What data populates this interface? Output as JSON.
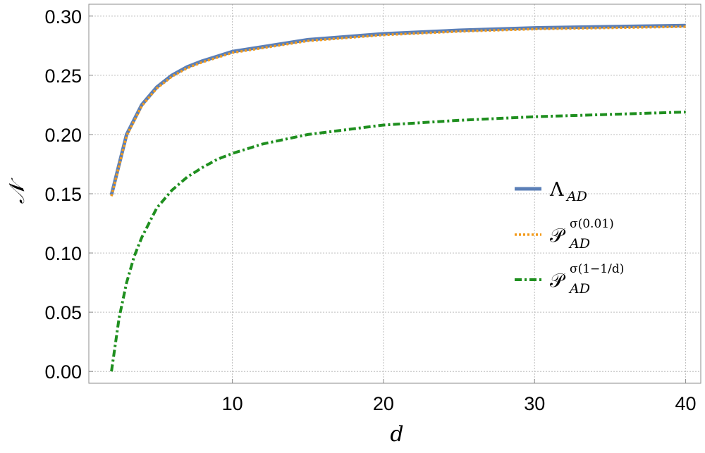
{
  "chart_data": {
    "type": "line",
    "xlabel": "d",
    "ylabel": "𝒩",
    "xlim": [
      0.5,
      41
    ],
    "ylim": [
      -0.01,
      0.31
    ],
    "xticks": [
      10,
      20,
      30,
      40
    ],
    "yticks": [
      0.0,
      0.05,
      0.1,
      0.15,
      0.2,
      0.25,
      0.3
    ],
    "xtick_labels": [
      "10",
      "20",
      "30",
      "40"
    ],
    "ytick_labels": [
      "0.00",
      "0.05",
      "0.10",
      "0.15",
      "0.20",
      "0.25",
      "0.30"
    ],
    "grid": true,
    "legend_position": "center-right",
    "series": [
      {
        "name": "Λ_AD",
        "legend_main": "Λ",
        "legend_sub": "AD",
        "legend_sup": "",
        "color": "#5b7fb7",
        "style": "solid",
        "x": [
          2,
          3,
          4,
          5,
          6,
          7,
          8,
          9,
          10,
          15,
          20,
          25,
          30,
          35,
          40
        ],
        "y": [
          0.149,
          0.2,
          0.225,
          0.24,
          0.25,
          0.257,
          0.262,
          0.266,
          0.27,
          0.28,
          0.285,
          0.288,
          0.29,
          0.291,
          0.292
        ]
      },
      {
        "name": "𝒫_AD^σ(0.01)",
        "legend_main": "𝒫",
        "legend_sub": "AD",
        "legend_sup": "σ(0.01)",
        "color": "#f39c1d",
        "style": "dotted",
        "x": [
          2,
          3,
          4,
          5,
          6,
          7,
          8,
          9,
          10,
          15,
          20,
          25,
          30,
          35,
          40
        ],
        "y": [
          0.148,
          0.199,
          0.224,
          0.239,
          0.249,
          0.256,
          0.261,
          0.265,
          0.269,
          0.279,
          0.284,
          0.287,
          0.289,
          0.29,
          0.291
        ]
      },
      {
        "name": "𝒫_AD^σ(1−1/d)",
        "legend_main": "𝒫",
        "legend_sub": "AD",
        "legend_sup": "σ(1−1/d)",
        "color": "#1f8f1f",
        "style": "dashdot",
        "x": [
          2,
          2.5,
          3,
          3.5,
          4,
          5,
          6,
          7,
          8,
          9,
          10,
          12,
          15,
          20,
          25,
          30,
          35,
          40
        ],
        "y": [
          0.0,
          0.045,
          0.075,
          0.097,
          0.113,
          0.138,
          0.153,
          0.164,
          0.172,
          0.179,
          0.184,
          0.192,
          0.2,
          0.208,
          0.212,
          0.215,
          0.217,
          0.219
        ]
      }
    ]
  }
}
